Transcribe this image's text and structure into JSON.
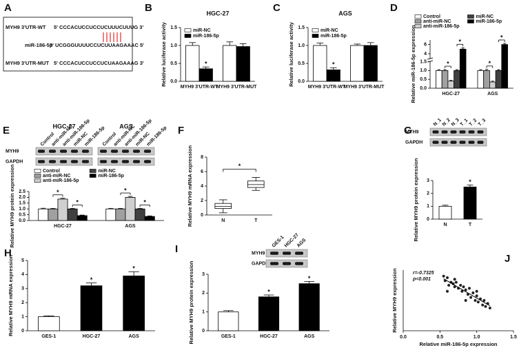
{
  "panel_labels": [
    "A",
    "B",
    "C",
    "D",
    "E",
    "F",
    "G",
    "H",
    "I",
    "J"
  ],
  "panel_a": {
    "rows": [
      {
        "label": "MYH9 3'UTR-WT",
        "sequence": "5' CCCACUCCUCCUCUUUCUUUG 3'"
      },
      {
        "label": "miR-186-5p",
        "sequence": "3' UCGGGUUUUCCUCUUAAGAAAC 5'"
      },
      {
        "label": "MYH9 3'UTR-MUT",
        "sequence": "5' CCCACUCCUCCUCUAAGAAAG 3'"
      }
    ]
  },
  "blots": {
    "E": {
      "groups": [
        "HGC-27",
        "AGS"
      ],
      "lanes": [
        "Control",
        "anti-miR-NC",
        "anti-miR-186-5p",
        "miR-NC",
        "miR-186-5p"
      ],
      "rows": [
        "MYH9",
        "GAPDH"
      ]
    },
    "G": {
      "lanes": [
        "N_1",
        "N_2",
        "N_3",
        "T_1",
        "T_2",
        "T_3"
      ],
      "rows": [
        "MYH9",
        "GAPDH"
      ]
    },
    "I": {
      "lanes": [
        "GES-1",
        "HGC-27",
        "AGS"
      ],
      "rows": [
        "MYH9",
        "GAPDH"
      ]
    }
  },
  "chart_data": [
    {
      "type": "bar",
      "title": "HGC-27",
      "y_label": "Relative luciferase activity",
      "categories": [
        "MYH9 3'UTR-WT",
        "MYH9 3'UTR-MUT"
      ],
      "series": [
        {
          "name": "miR-NC",
          "color": "#ffffff",
          "values": [
            1.0,
            1.0
          ],
          "errors": [
            0.08,
            0.1
          ]
        },
        {
          "name": "miR-186-5p",
          "color": "#000000",
          "values": [
            0.35,
            0.97
          ],
          "errors": [
            0.05,
            0.08
          ]
        }
      ],
      "ylim": [
        0,
        1.5
      ],
      "yticks": [
        {
          "value": 0,
          "label": "0.0"
        },
        {
          "value": 0.5,
          "label": "0.5"
        },
        {
          "value": 1,
          "label": "1.0"
        },
        {
          "value": 1.5,
          "label": "1.5"
        }
      ],
      "legend": "upper left",
      "annotation": "*"
    },
    {
      "type": "bar",
      "title": "AGS",
      "y_label": "Relative luciferase activity",
      "categories": [
        "MYH9 3'UTR-WT",
        "MYH9 3'UTR-MUT"
      ],
      "series": [
        {
          "name": "miR-NC",
          "color": "#ffffff",
          "values": [
            1.0,
            1.0
          ],
          "errors": [
            0.07,
            0.04
          ]
        },
        {
          "name": "miR-186-5p",
          "color": "#000000",
          "values": [
            0.32,
            1.0
          ],
          "errors": [
            0.06,
            0.08
          ]
        }
      ],
      "ylim": [
        0,
        1.5
      ],
      "yticks": [
        {
          "value": 0,
          "label": "0.0"
        },
        {
          "value": 0.5,
          "label": "0.5"
        },
        {
          "value": 1,
          "label": "1.0"
        },
        {
          "value": 1.5,
          "label": "1.5"
        }
      ],
      "legend": "upper left",
      "annotation": "*"
    },
    {
      "type": "bar",
      "y_label": "Relative miR-186-5p expression",
      "categories": [
        "HGC-27",
        "AGS"
      ],
      "series": [
        {
          "name": "Control",
          "color": "#ffffff",
          "values": [
            1.0,
            1.0
          ],
          "errors": [
            0.05,
            0.05
          ]
        },
        {
          "name": "anti-miR-NC",
          "color": "#a0a0a0",
          "values": [
            1.0,
            1.0
          ],
          "errors": [
            0.05,
            0.06
          ]
        },
        {
          "name": "anti-miR-186-5p",
          "color": "#cfcfcf",
          "values": [
            0.4,
            0.35
          ],
          "errors": [
            0.05,
            0.05
          ]
        },
        {
          "name": "miR-NC",
          "color": "#404040",
          "values": [
            1.0,
            1.0
          ],
          "errors": [
            0.05,
            0.05
          ]
        },
        {
          "name": "miR-186-5p",
          "color": "#000000",
          "values": [
            5.0,
            6.0
          ],
          "errors": [
            0.3,
            0.25
          ]
        }
      ],
      "ylim": [
        0,
        7
      ],
      "ybreak": [
        1.5,
        3
      ],
      "yticks": [
        {
          "value": 0,
          "label": "0.0"
        },
        {
          "value": 0.5,
          "label": "0.5"
        },
        {
          "value": 1,
          "label": "1.0"
        },
        {
          "value": 1.5,
          "label": "1.5"
        },
        4,
        6
      ],
      "legend": "above",
      "annotation": "*"
    },
    {
      "type": "bar",
      "y_label": "Relative MYH9 protein expression",
      "categories": [
        "HGC-27",
        "AGS"
      ],
      "series": [
        {
          "name": "Control",
          "color": "#ffffff",
          "values": [
            1.0,
            1.0
          ],
          "errors": [
            0.06,
            0.05
          ]
        },
        {
          "name": "anti-miR-NC",
          "color": "#a0a0a0",
          "values": [
            1.0,
            1.0
          ],
          "errors": [
            0.05,
            0.05
          ]
        },
        {
          "name": "anti-miR-186-5p",
          "color": "#cfcfcf",
          "values": [
            1.85,
            2.0
          ],
          "errors": [
            0.07,
            0.08
          ]
        },
        {
          "name": "miR-NC",
          "color": "#404040",
          "values": [
            1.0,
            1.0
          ],
          "errors": [
            0.05,
            0.05
          ]
        },
        {
          "name": "miR-186-5p",
          "color": "#000000",
          "values": [
            0.42,
            0.35
          ],
          "errors": [
            0.05,
            0.05
          ]
        }
      ],
      "ylim": [
        0,
        2.5
      ],
      "yticks": [
        {
          "value": 0,
          "label": "0.0"
        },
        {
          "value": 0.5,
          "label": "0.5"
        },
        {
          "value": 1,
          "label": "1.0"
        },
        {
          "value": 1.5,
          "label": "1.5"
        },
        {
          "value": 2,
          "label": "2.0"
        },
        {
          "value": 2.5,
          "label": "2.5"
        }
      ],
      "legend": "above",
      "annotation": "*"
    },
    {
      "type": "box",
      "y_label": "Relative MYH9 mRNA expression",
      "categories": [
        "N",
        "T"
      ],
      "boxes": [
        {
          "min": 0.3,
          "q1": 0.9,
          "median": 1.2,
          "q3": 1.6,
          "max": 2.1
        },
        {
          "min": 3.4,
          "q1": 3.8,
          "median": 4.2,
          "q3": 4.7,
          "max": 5.2
        }
      ],
      "ylim": [
        0,
        8
      ],
      "yticks": [
        0,
        2,
        4,
        6,
        8
      ],
      "annotation": "*"
    },
    {
      "type": "bar",
      "y_label": "Relative MYH9 protein expression",
      "categories": [
        "N",
        "T"
      ],
      "values": [
        1.0,
        2.5
      ],
      "errors": [
        0.08,
        0.15
      ],
      "colors": [
        "#ffffff",
        "#000000"
      ],
      "ylim": [
        0,
        3
      ],
      "yticks": [
        0,
        1,
        2,
        3
      ],
      "annotation": "*"
    },
    {
      "type": "bar",
      "y_label": "Relative MYH9 mRNA expression",
      "categories": [
        "GES-1",
        "HGC-27",
        "AGS"
      ],
      "values": [
        1.0,
        3.2,
        3.9
      ],
      "errors": [
        0.06,
        0.2,
        0.3
      ],
      "colors": [
        "#ffffff",
        "#000000",
        "#000000"
      ],
      "ylim": [
        0,
        5
      ],
      "yticks": [
        0,
        1,
        2,
        3,
        4,
        5
      ],
      "annotation": "*"
    },
    {
      "type": "bar",
      "y_label": "Relative MYH9 protein expression",
      "categories": [
        "GES-1",
        "HGC-27",
        "AGS"
      ],
      "values": [
        1.0,
        1.8,
        2.5
      ],
      "errors": [
        0.07,
        0.1,
        0.12
      ],
      "colors": [
        "#ffffff",
        "#000000",
        "#000000"
      ],
      "ylim": [
        0,
        3
      ],
      "yticks": [
        0,
        1,
        2,
        3
      ],
      "annotation": "*"
    },
    {
      "type": "scatter",
      "x_label": "Relative miR-186-5p expression",
      "y_label": "Relative MYH9 expression",
      "annotations": [
        "r=-0.7325",
        "p<0.001"
      ],
      "x": [
        0.55,
        0.57,
        0.6,
        0.62,
        0.65,
        0.68,
        0.7,
        0.72,
        0.75,
        0.78,
        0.8,
        0.82,
        0.85,
        0.88,
        0.9,
        0.92,
        0.95,
        0.98,
        1.0,
        1.02,
        1.05,
        1.08,
        1.1,
        1.12,
        1.15,
        1.18,
        0.6,
        0.7,
        0.85,
        1.0
      ],
      "y": [
        1.8,
        1.65,
        1.75,
        1.5,
        1.6,
        1.55,
        1.45,
        1.6,
        1.4,
        1.5,
        1.3,
        1.45,
        1.35,
        1.2,
        1.4,
        1.1,
        1.25,
        1.0,
        1.15,
        0.95,
        1.05,
        0.85,
        1.0,
        0.8,
        0.9,
        0.75,
        1.3,
        1.7,
        1.0,
        1.3
      ],
      "xlim": [
        0,
        1.5
      ],
      "xticks": [
        {
          "value": 0,
          "label": "0.0"
        },
        {
          "value": 0.5,
          "label": "0.5"
        },
        {
          "value": 1,
          "label": "1.0"
        },
        {
          "value": 1.5,
          "label": "1.5"
        }
      ],
      "ylim": [
        0,
        2
      ]
    }
  ]
}
